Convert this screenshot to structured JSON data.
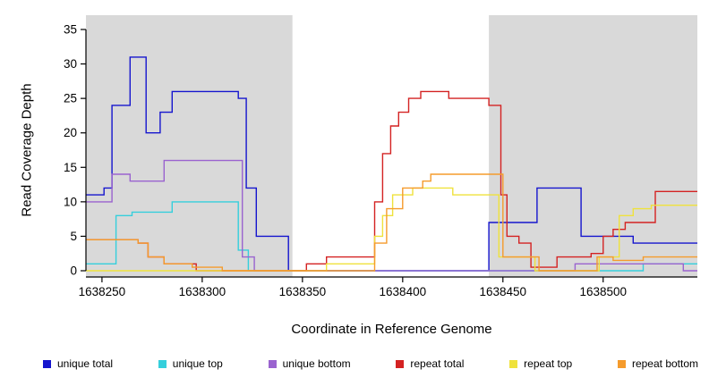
{
  "figure": {
    "background": "#ffffff"
  },
  "chart_data": {
    "type": "line",
    "step": true,
    "title": "",
    "xlabel": "Coordinate in Reference Genome",
    "ylabel": "Read Coverage Depth",
    "xlim": [
      1638242,
      1638547
    ],
    "ylim": [
      0,
      35
    ],
    "x_ticks": [
      1638250,
      1638300,
      1638350,
      1638400,
      1638450,
      1638500
    ],
    "y_ticks": [
      0,
      5,
      10,
      15,
      20,
      25,
      30,
      35
    ],
    "grid": false,
    "legend_position": "bottom",
    "shaded_regions": [
      {
        "x0": 1638242,
        "x1": 1638345,
        "color": "#d9d9d9"
      },
      {
        "x0": 1638443,
        "x1": 1638547,
        "color": "#d9d9d9"
      }
    ],
    "series": [
      {
        "name": "unique total",
        "color": "#1515CE",
        "points": [
          [
            1638242,
            11
          ],
          [
            1638251,
            12
          ],
          [
            1638255,
            24
          ],
          [
            1638264,
            31
          ],
          [
            1638272,
            20
          ],
          [
            1638279,
            23
          ],
          [
            1638285,
            26
          ],
          [
            1638318,
            25
          ],
          [
            1638322,
            12
          ],
          [
            1638327,
            5
          ],
          [
            1638343,
            0
          ],
          [
            1638443,
            7
          ],
          [
            1638467,
            12
          ],
          [
            1638489,
            5
          ],
          [
            1638515,
            4
          ],
          [
            1638547,
            4
          ]
        ]
      },
      {
        "name": "unique top",
        "color": "#35CFDC",
        "points": [
          [
            1638242,
            1
          ],
          [
            1638257,
            8
          ],
          [
            1638265,
            8.5
          ],
          [
            1638285,
            10
          ],
          [
            1638318,
            3
          ],
          [
            1638323,
            0
          ],
          [
            1638520,
            1
          ],
          [
            1638547,
            1
          ]
        ]
      },
      {
        "name": "unique bottom",
        "color": "#9A63CF",
        "points": [
          [
            1638242,
            10
          ],
          [
            1638255,
            14
          ],
          [
            1638264,
            13
          ],
          [
            1638281,
            16
          ],
          [
            1638320,
            2
          ],
          [
            1638326,
            0
          ],
          [
            1638486,
            1
          ],
          [
            1638540,
            0
          ],
          [
            1638547,
            0
          ]
        ]
      },
      {
        "name": "repeat total",
        "color": "#D42222",
        "points": [
          [
            1638242,
            4.5
          ],
          [
            1638268,
            4
          ],
          [
            1638273,
            2
          ],
          [
            1638281,
            1
          ],
          [
            1638297,
            0
          ],
          [
            1638352,
            1
          ],
          [
            1638362,
            2
          ],
          [
            1638386,
            10
          ],
          [
            1638390,
            17
          ],
          [
            1638394,
            21
          ],
          [
            1638398,
            23
          ],
          [
            1638403,
            25
          ],
          [
            1638409,
            26
          ],
          [
            1638423,
            25
          ],
          [
            1638443,
            24
          ],
          [
            1638449,
            11
          ],
          [
            1638452,
            5
          ],
          [
            1638458,
            4
          ],
          [
            1638464,
            0.5
          ],
          [
            1638477,
            2
          ],
          [
            1638494,
            2.5
          ],
          [
            1638500,
            5
          ],
          [
            1638505,
            6
          ],
          [
            1638511,
            7
          ],
          [
            1638526,
            11.5
          ],
          [
            1638547,
            11.5
          ]
        ]
      },
      {
        "name": "repeat top",
        "color": "#EFE23C",
        "points": [
          [
            1638242,
            0
          ],
          [
            1638362,
            1
          ],
          [
            1638386,
            5
          ],
          [
            1638390,
            8
          ],
          [
            1638395,
            11
          ],
          [
            1638405,
            12
          ],
          [
            1638425,
            11
          ],
          [
            1638448,
            2
          ],
          [
            1638466,
            0
          ],
          [
            1638498,
            2
          ],
          [
            1638508,
            8
          ],
          [
            1638515,
            9
          ],
          [
            1638524,
            9.5
          ],
          [
            1638547,
            9.5
          ]
        ]
      },
      {
        "name": "repeat bottom",
        "color": "#F59B2C",
        "points": [
          [
            1638242,
            4.5
          ],
          [
            1638268,
            4
          ],
          [
            1638273,
            2
          ],
          [
            1638281,
            1
          ],
          [
            1638295,
            0.5
          ],
          [
            1638310,
            0
          ],
          [
            1638386,
            4
          ],
          [
            1638392,
            9
          ],
          [
            1638400,
            12
          ],
          [
            1638410,
            13
          ],
          [
            1638414,
            14
          ],
          [
            1638450,
            2
          ],
          [
            1638468,
            0
          ],
          [
            1638497,
            2
          ],
          [
            1638505,
            1.5
          ],
          [
            1638520,
            2
          ],
          [
            1638547,
            2
          ]
        ]
      }
    ]
  },
  "legend": {
    "items": [
      {
        "label": "unique total"
      },
      {
        "label": "unique top"
      },
      {
        "label": "unique bottom"
      },
      {
        "label": "repeat total"
      },
      {
        "label": "repeat top"
      },
      {
        "label": "repeat bottom"
      }
    ]
  }
}
